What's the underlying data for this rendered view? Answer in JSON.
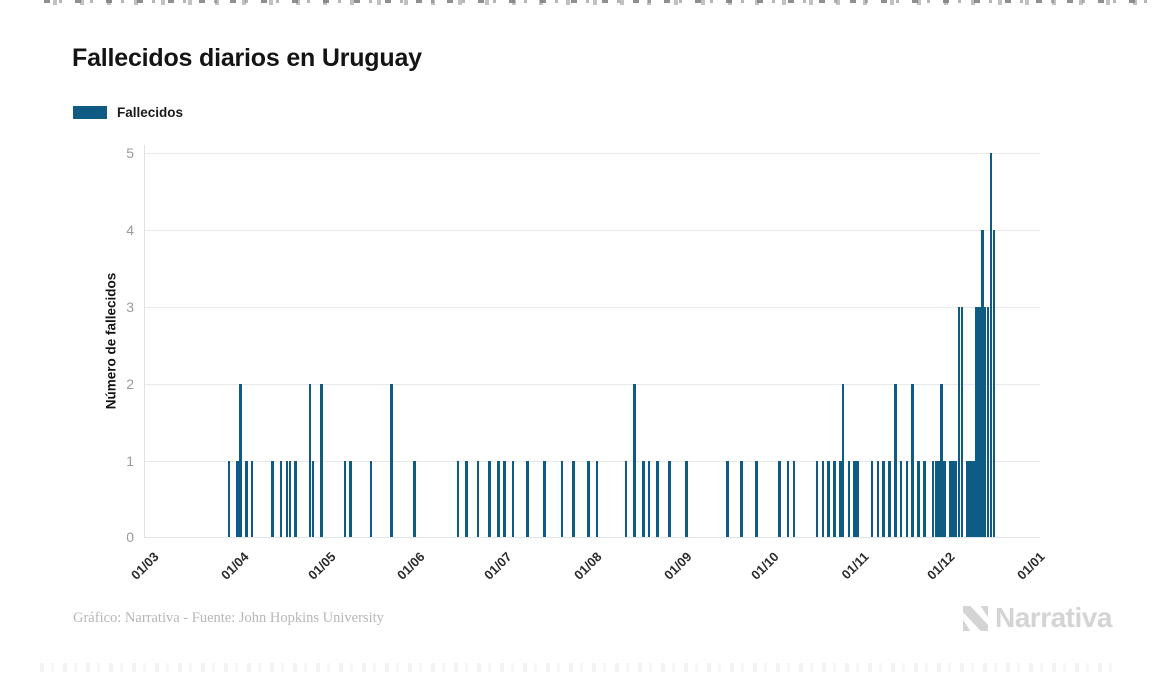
{
  "title": "Fallecidos diarios en Uruguay",
  "legend": {
    "label": "Fallecidos",
    "color": "#0e5c84"
  },
  "footer": {
    "credit": "Gráfico: Narrativa - Fuente: John Hopkins University"
  },
  "brand": {
    "name": "Narrativa"
  },
  "chart_data": {
    "type": "bar",
    "title": "Fallecidos diarios en Uruguay",
    "series_name": "Fallecidos",
    "bar_color": "#0e5c84",
    "xlabel": "",
    "ylabel": "Número de fallecidos",
    "ylim": [
      0,
      5
    ],
    "yticks": [
      0,
      1,
      2,
      3,
      4,
      5
    ],
    "xtick_labels": [
      "01/03",
      "01/04",
      "01/05",
      "01/06",
      "01/07",
      "01/08",
      "01/09",
      "01/10",
      "01/11",
      "01/12",
      "01/01"
    ],
    "x_range": "daily, 01/03/2020 - 01/01/2021",
    "grid": "horizontal",
    "legend_position": "top-left",
    "points": [
      {
        "date": "28/03",
        "value": 1
      },
      {
        "date": "31/03",
        "value": 1
      },
      {
        "date": "01/04",
        "value": 2
      },
      {
        "date": "03/04",
        "value": 1
      },
      {
        "date": "05/04",
        "value": 1
      },
      {
        "date": "12/04",
        "value": 1
      },
      {
        "date": "15/04",
        "value": 1
      },
      {
        "date": "17/04",
        "value": 1
      },
      {
        "date": "18/04",
        "value": 1
      },
      {
        "date": "20/04",
        "value": 1
      },
      {
        "date": "25/04",
        "value": 2
      },
      {
        "date": "26/04",
        "value": 1
      },
      {
        "date": "29/04",
        "value": 2
      },
      {
        "date": "07/05",
        "value": 1
      },
      {
        "date": "09/05",
        "value": 1
      },
      {
        "date": "16/05",
        "value": 1
      },
      {
        "date": "23/05",
        "value": 2
      },
      {
        "date": "31/05",
        "value": 1
      },
      {
        "date": "15/06",
        "value": 1
      },
      {
        "date": "18/06",
        "value": 1
      },
      {
        "date": "22/06",
        "value": 1
      },
      {
        "date": "26/06",
        "value": 1
      },
      {
        "date": "29/06",
        "value": 1
      },
      {
        "date": "01/07",
        "value": 1
      },
      {
        "date": "04/07",
        "value": 1
      },
      {
        "date": "09/07",
        "value": 1
      },
      {
        "date": "15/07",
        "value": 1
      },
      {
        "date": "21/07",
        "value": 1
      },
      {
        "date": "25/07",
        "value": 1
      },
      {
        "date": "30/07",
        "value": 1
      },
      {
        "date": "02/08",
        "value": 1
      },
      {
        "date": "12/08",
        "value": 1
      },
      {
        "date": "15/08",
        "value": 2
      },
      {
        "date": "18/08",
        "value": 1
      },
      {
        "date": "20/08",
        "value": 1
      },
      {
        "date": "23/08",
        "value": 1
      },
      {
        "date": "27/08",
        "value": 1
      },
      {
        "date": "02/09",
        "value": 1
      },
      {
        "date": "16/09",
        "value": 1
      },
      {
        "date": "21/09",
        "value": 1
      },
      {
        "date": "26/09",
        "value": 1
      },
      {
        "date": "04/10",
        "value": 1
      },
      {
        "date": "07/10",
        "value": 1
      },
      {
        "date": "09/10",
        "value": 1
      },
      {
        "date": "17/10",
        "value": 1
      },
      {
        "date": "19/10",
        "value": 1
      },
      {
        "date": "21/10",
        "value": 1
      },
      {
        "date": "23/10",
        "value": 1
      },
      {
        "date": "25/10",
        "value": 1
      },
      {
        "date": "26/10",
        "value": 2
      },
      {
        "date": "28/10",
        "value": 1
      },
      {
        "date": "30/10",
        "value": 1
      },
      {
        "date": "31/10",
        "value": 1
      },
      {
        "date": "05/11",
        "value": 1
      },
      {
        "date": "07/11",
        "value": 1
      },
      {
        "date": "09/11",
        "value": 1
      },
      {
        "date": "11/11",
        "value": 1
      },
      {
        "date": "13/11",
        "value": 2
      },
      {
        "date": "15/11",
        "value": 1
      },
      {
        "date": "17/11",
        "value": 1
      },
      {
        "date": "19/11",
        "value": 2
      },
      {
        "date": "21/11",
        "value": 1
      },
      {
        "date": "23/11",
        "value": 1
      },
      {
        "date": "26/11",
        "value": 1
      },
      {
        "date": "27/11",
        "value": 1
      },
      {
        "date": "28/11",
        "value": 1
      },
      {
        "date": "29/11",
        "value": 2
      },
      {
        "date": "30/11",
        "value": 1
      },
      {
        "date": "02/12",
        "value": 1
      },
      {
        "date": "03/12",
        "value": 1
      },
      {
        "date": "04/12",
        "value": 1
      },
      {
        "date": "05/12",
        "value": 3
      },
      {
        "date": "06/12",
        "value": 3
      },
      {
        "date": "08/12",
        "value": 1
      },
      {
        "date": "09/12",
        "value": 1
      },
      {
        "date": "10/12",
        "value": 1
      },
      {
        "date": "11/12",
        "value": 3
      },
      {
        "date": "12/12",
        "value": 3
      },
      {
        "date": "13/12",
        "value": 4
      },
      {
        "date": "14/12",
        "value": 3
      },
      {
        "date": "15/12",
        "value": 3
      },
      {
        "date": "16/12",
        "value": 5
      },
      {
        "date": "17/12",
        "value": 4
      }
    ]
  }
}
